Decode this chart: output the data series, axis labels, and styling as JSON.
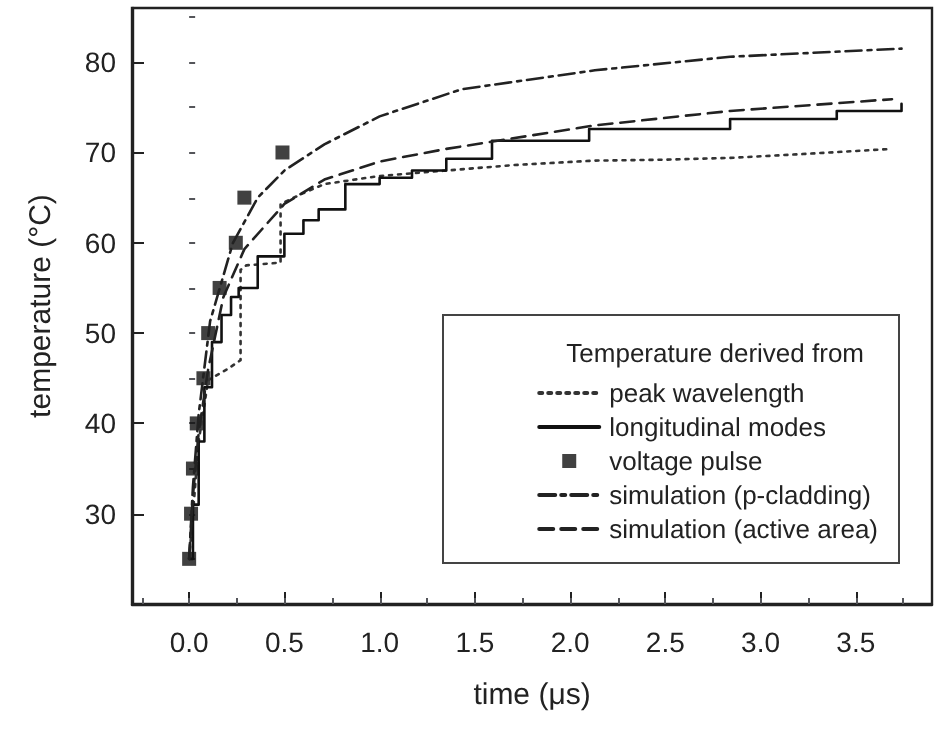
{
  "chart_data": {
    "type": "line",
    "xlabel": "time (μs)",
    "ylabel": "temperature (°C)",
    "legend_title": "Temperature derived from",
    "xlim": [
      -0.3,
      3.9
    ],
    "xticks": [
      {
        "value": 0,
        "label": "0.0"
      },
      0.5,
      {
        "value": 1,
        "label": "1.0"
      },
      1.5,
      {
        "value": 2,
        "label": "2.0"
      },
      2.5,
      {
        "value": 3,
        "label": "3.0"
      },
      3.5
    ],
    "ylim": [
      20,
      86
    ],
    "yticks": [
      30,
      40,
      50,
      60,
      70,
      80
    ],
    "grid": false,
    "legend": "bottom right",
    "series": [
      {
        "name": "peak wavelength",
        "type": "line",
        "color": "#333333",
        "line_style": "dotted",
        "marker": "none",
        "x": [
          0,
          0.02,
          0.05,
          0.1,
          0.2,
          0.27,
          0.27,
          0.3,
          0.48,
          0.48,
          0.6,
          0.71,
          1.0,
          1.35,
          1.7,
          2.13,
          2.5,
          2.84,
          3.2,
          3.69
        ],
        "values": [
          25,
          30,
          38,
          44.8,
          46,
          47,
          57,
          57.5,
          57.8,
          64.3,
          65.5,
          66.5,
          67.4,
          68,
          68.6,
          69.1,
          69.2,
          69.4,
          69.8,
          70.4
        ]
      },
      {
        "name": "longitudinal modes",
        "type": "step",
        "color": "#111111",
        "line_style": "solid",
        "marker": "none",
        "x": [
          0,
          0.02,
          0.05,
          0.08,
          0.12,
          0.17,
          0.22,
          0.26,
          0.36,
          0.5,
          0.6,
          0.68,
          0.82,
          1.0,
          1.17,
          1.35,
          1.59,
          2.1,
          2.84,
          3.4,
          3.74
        ],
        "values": [
          25,
          31,
          38,
          44,
          49,
          52,
          54,
          55,
          58.5,
          61,
          62.5,
          63.7,
          66.5,
          67.2,
          68,
          69.3,
          71.3,
          72.6,
          73.7,
          74.6,
          75.4
        ]
      },
      {
        "name": "voltage pulse",
        "type": "scatter",
        "color": "#111111",
        "marker": "square",
        "x": [
          0,
          0.01,
          0.02,
          0.04,
          0.075,
          0.1,
          0.16,
          0.245,
          0.29,
          0.49
        ],
        "values": [
          25,
          30,
          35,
          40,
          45,
          50,
          55,
          60,
          65,
          70
        ]
      },
      {
        "name": "simulation (p-cladding)",
        "type": "line",
        "color": "#222222",
        "line_style": "dashdot",
        "marker": "none",
        "x": [
          0,
          0.02,
          0.05,
          0.11,
          0.23,
          0.36,
          0.5,
          0.71,
          1.0,
          1.43,
          2.13,
          2.84,
          3.74
        ],
        "values": [
          25,
          33,
          41,
          51.3,
          60,
          65,
          68,
          70.9,
          74,
          77,
          79.1,
          80.6,
          81.5
        ]
      },
      {
        "name": "simulation (active area)",
        "type": "line",
        "color": "#222222",
        "line_style": "dashed",
        "marker": "none",
        "x": [
          0,
          0.02,
          0.05,
          0.1,
          0.18,
          0.29,
          0.5,
          0.71,
          1.0,
          1.35,
          2.13,
          2.84,
          3.69
        ],
        "values": [
          25,
          32,
          39,
          46,
          54,
          59.3,
          64.3,
          67,
          69,
          70.4,
          73,
          74.6,
          75.9
        ]
      }
    ]
  }
}
